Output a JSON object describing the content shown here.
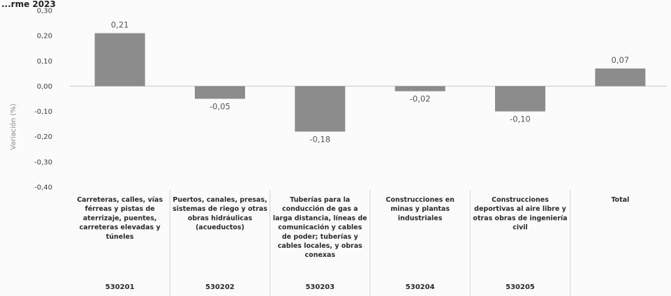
{
  "header_text": "...rme 2023",
  "chart_data": {
    "type": "bar",
    "categories": [
      "Carreteras, calles, vías férreas y pistas de aterrizaje, puentes, carreteras elevadas y túneles",
      "Puertos, canales, presas, sistemas de riego y otras obras hidráulicas (acueductos)",
      "Tuberías para la conducción de gas a larga distancia, líneas de comunicación y cables de poder; tuberías y cables locales, y obras conexas",
      "Construcciones en minas y plantas industriales",
      "Construcciones deportivas al aire libre y otras obras de ingeniería civil",
      "Total"
    ],
    "category_lines": [
      [
        "Carreteras, calles, vías",
        "férreas y pistas de",
        "aterrizaje, puentes,",
        "carreteras elevadas y",
        "túneles"
      ],
      [
        "Puertos, canales, presas,",
        "sistemas de riego y otras",
        "obras hidráulicas",
        "(acueductos)"
      ],
      [
        "Tuberías para la",
        "conducción de gas a",
        "larga distancia, líneas de",
        "comunicación y cables",
        "de poder; tuberías y",
        "cables locales, y obras",
        "conexas"
      ],
      [
        "Construcciones en",
        "minas y plantas",
        "industriales"
      ],
      [
        "Construcciones",
        "deportivas al aire libre y",
        "otras obras de ingeniería",
        "civil"
      ],
      [
        "Total"
      ]
    ],
    "codes": [
      "530201",
      "530202",
      "530203",
      "530204",
      "530205",
      ""
    ],
    "values": [
      0.21,
      -0.05,
      -0.18,
      -0.02,
      -0.1,
      0.07
    ],
    "value_labels": [
      "0,21",
      "-0,05",
      "-0,18",
      "-0,02",
      "-0,10",
      "0,07"
    ],
    "ylabel": "Variación (%)",
    "ylim": [
      -0.4,
      0.3
    ],
    "yticks": [
      0.3,
      0.2,
      0.1,
      0.0,
      -0.1,
      -0.2,
      -0.3,
      -0.4
    ],
    "ytick_labels": [
      "0,30",
      "0,20",
      "0,10",
      "0,00",
      "-0,10",
      "-0,20",
      "-0,30",
      "-0,40"
    ],
    "bar_color": "#8c8c8c",
    "axis_color": "#c8c8c8",
    "grid": false,
    "legend": "none"
  }
}
